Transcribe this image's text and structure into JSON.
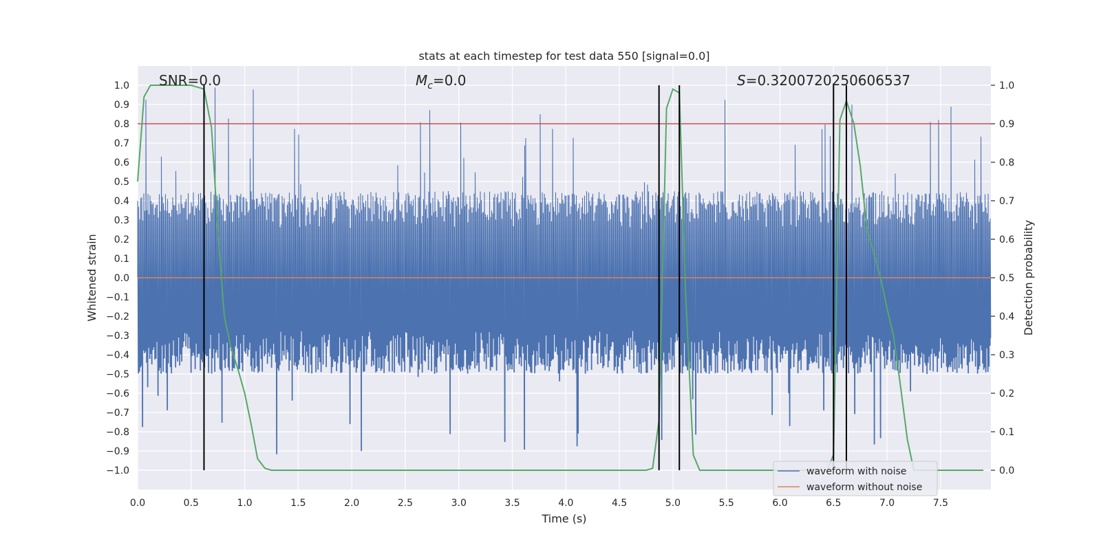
{
  "chart_data": {
    "type": "line",
    "title": "stats at each timestep for test data 550 [signal=0.0]",
    "xlabel": "Time (s)",
    "ylabel": "Whitened strain",
    "ylabel_right": "Detection probability",
    "xlim": [
      0.0,
      7.97
    ],
    "ylim": [
      -1.1,
      1.1
    ],
    "ylim_right": [
      -0.05,
      1.05
    ],
    "x_ticks": [
      "0.0",
      "0.5",
      "1.0",
      "1.5",
      "2.0",
      "2.5",
      "3.0",
      "3.5",
      "4.0",
      "4.5",
      "5.0",
      "5.5",
      "6.0",
      "6.5",
      "7.0",
      "7.5"
    ],
    "y_ticks": [
      "1.0",
      "0.9",
      "0.8",
      "0.7",
      "0.6",
      "0.5",
      "0.4",
      "0.3",
      "0.2",
      "0.1",
      "0.0",
      "-0.1",
      "-0.2",
      "-0.3",
      "-0.4",
      "-0.5",
      "-0.6",
      "-0.7",
      "-0.8",
      "-0.9",
      "-1.0"
    ],
    "y_ticks_right": [
      "1.0",
      "0.9",
      "0.8",
      "0.7",
      "0.6",
      "0.5",
      "0.4",
      "0.3",
      "0.2",
      "0.1",
      "0.0"
    ],
    "grid": true,
    "legend_position": "lower-right",
    "annotations": {
      "snr": "SNR=0.0",
      "mc_symbol": "M",
      "mc_sub": "c",
      "mc_value": "=0.0",
      "s_symbol": "S",
      "s_value": "=0.3200720250606537"
    },
    "series": [
      {
        "name": "waveform with noise",
        "color": "#4c72b0",
        "noise_envelope": {
          "typical_max": 0.45,
          "typical_min": -0.5,
          "peak_max": 1.0,
          "peak_min": -0.93
        }
      },
      {
        "name": "waveform without noise",
        "color": "#dd8452",
        "y": 0.0
      }
    ],
    "detection_probability": {
      "color": "#55a868",
      "x": [
        0.0,
        0.06,
        0.12,
        0.19,
        0.25,
        0.31,
        0.37,
        0.44,
        0.5,
        0.56,
        0.62,
        0.69,
        0.75,
        0.81,
        0.87,
        0.94,
        1.0,
        1.06,
        1.12,
        1.19,
        1.25,
        1.31,
        4.75,
        4.81,
        4.87,
        4.94,
        5.0,
        5.06,
        5.12,
        5.19,
        5.25,
        6.44,
        6.5,
        6.56,
        6.62,
        6.69,
        6.75,
        6.81,
        6.87,
        6.94,
        7.0,
        7.06,
        7.12,
        7.19,
        7.25,
        7.9
      ],
      "y": [
        0.75,
        0.97,
        1.0,
        1.0,
        1.0,
        1.0,
        1.0,
        1.0,
        1.0,
        0.995,
        0.99,
        0.89,
        0.62,
        0.4,
        0.32,
        0.26,
        0.2,
        0.12,
        0.03,
        0.005,
        0.0,
        0.0,
        0.0,
        0.005,
        0.13,
        0.94,
        0.99,
        0.98,
        0.45,
        0.04,
        0.0,
        0.0,
        0.04,
        0.91,
        0.96,
        0.9,
        0.79,
        0.63,
        0.57,
        0.5,
        0.42,
        0.35,
        0.23,
        0.08,
        0.0,
        0.0
      ]
    },
    "threshold": {
      "value": 0.9,
      "axis": "right",
      "color": "#c44e52"
    },
    "trigger_lines": {
      "color": "#000000",
      "x": [
        0.62,
        4.87,
        5.06,
        6.5,
        6.62
      ]
    }
  }
}
